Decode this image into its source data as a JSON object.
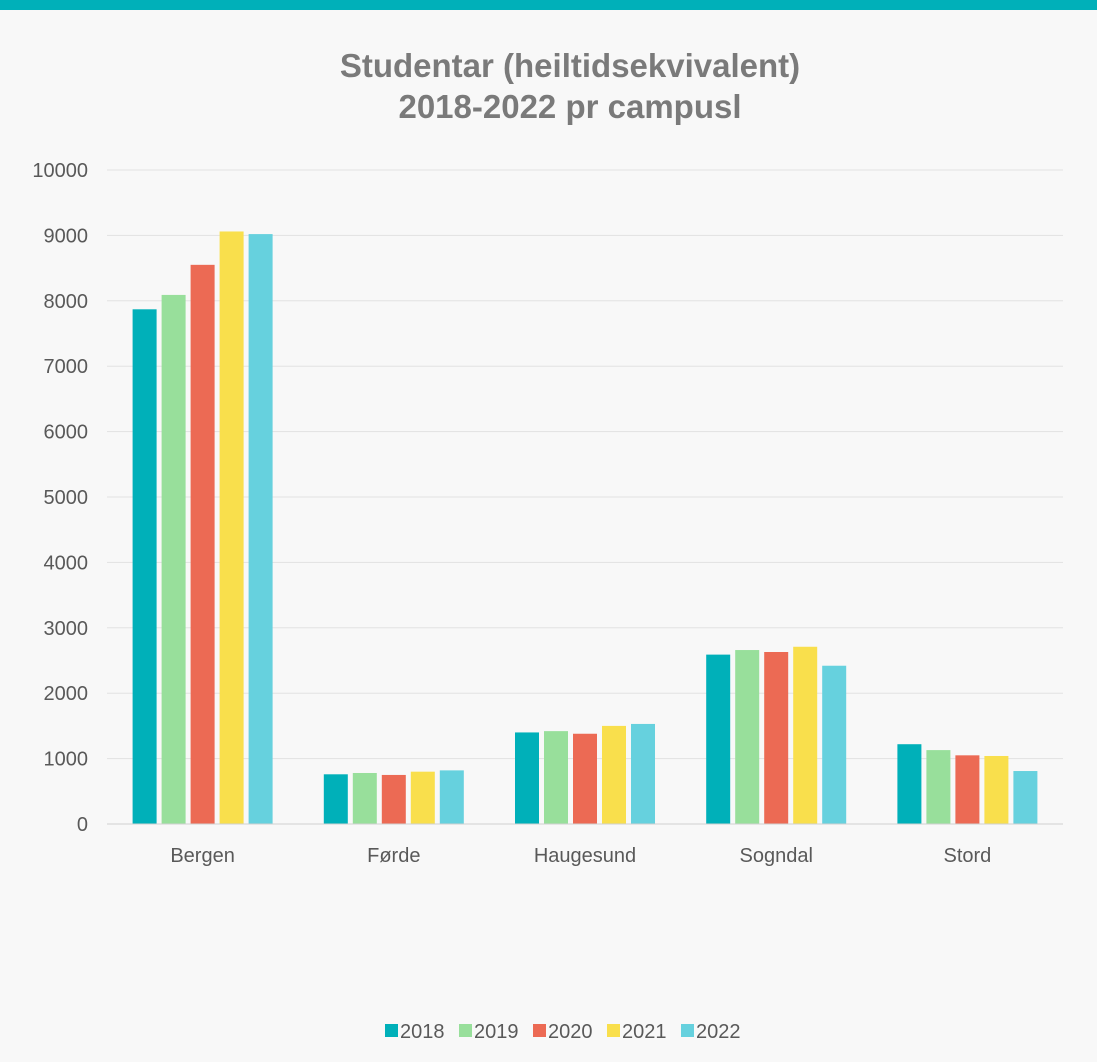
{
  "chart_data": {
    "type": "bar",
    "title_lines": [
      "Studentar (heiltidsekvivalent)",
      "2018-2022 pr campusl"
    ],
    "xlabel": "",
    "ylabel": "",
    "categories": [
      "Bergen",
      "Førde",
      "Haugesund",
      "Sogndal",
      "Stord"
    ],
    "series": [
      {
        "name": "2018",
        "color": "#00b0b9",
        "values": [
          7870,
          760,
          1400,
          2590,
          1220
        ]
      },
      {
        "name": "2019",
        "color": "#98df9b",
        "values": [
          8090,
          780,
          1420,
          2660,
          1130
        ]
      },
      {
        "name": "2020",
        "color": "#ec6a54",
        "values": [
          8550,
          750,
          1380,
          2630,
          1050
        ]
      },
      {
        "name": "2021",
        "color": "#f9df4c",
        "values": [
          9060,
          800,
          1500,
          2710,
          1040
        ]
      },
      {
        "name": "2022",
        "color": "#66d1de",
        "values": [
          9020,
          820,
          1530,
          2420,
          810
        ]
      }
    ],
    "ylim": [
      0,
      10000
    ],
    "yticks": [
      0,
      1000,
      2000,
      3000,
      4000,
      5000,
      6000,
      7000,
      8000,
      9000,
      10000
    ],
    "grid": true,
    "legend_position": "bottom"
  }
}
